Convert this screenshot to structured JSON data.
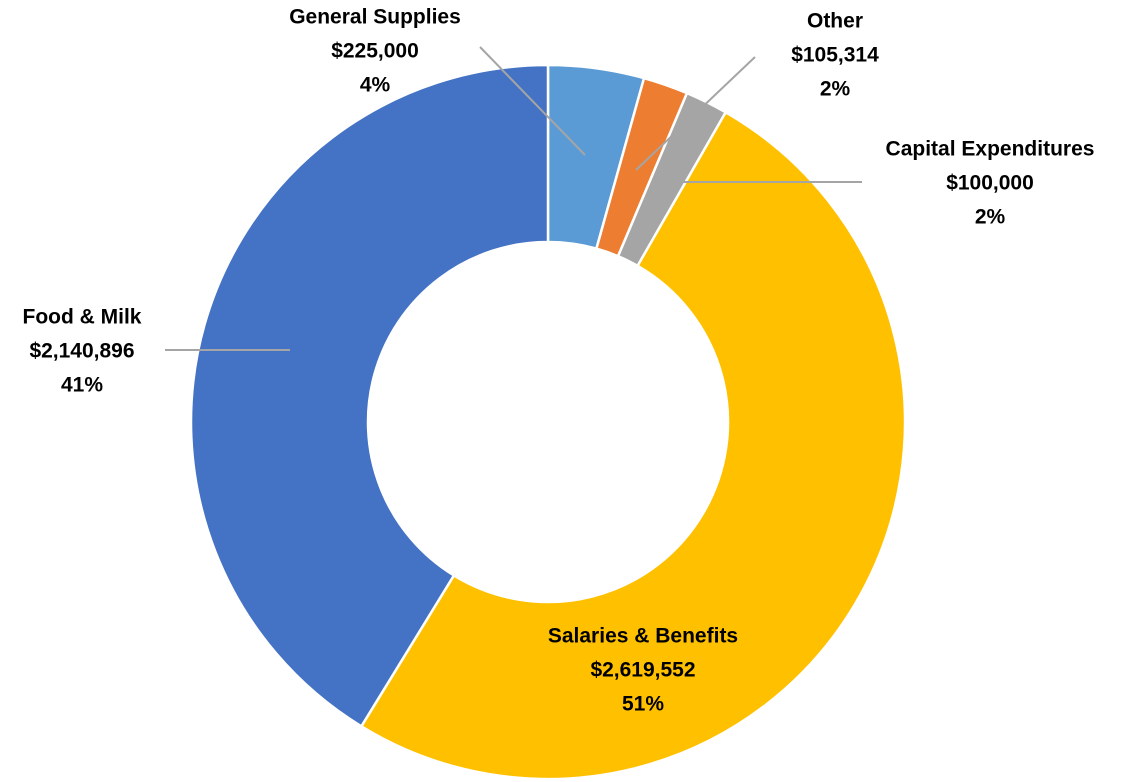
{
  "chart_data": {
    "type": "donut",
    "categories": [
      "General Supplies",
      "Other",
      "Capital Expenditures",
      "Salaries & Benefits",
      "Food & Milk"
    ],
    "values": [
      225000,
      105314,
      100000,
      2619552,
      2140896
    ],
    "value_labels": [
      "$225,000",
      "$105,314",
      "$100,000",
      "$2,619,552",
      "$2,140,896"
    ],
    "percent_labels": [
      "4%",
      "2%",
      "2%",
      "51%",
      "41%"
    ],
    "colors": [
      "#5b9bd5",
      "#ed7d31",
      "#a5a5a5",
      "#ffc000",
      "#4472c4"
    ]
  }
}
